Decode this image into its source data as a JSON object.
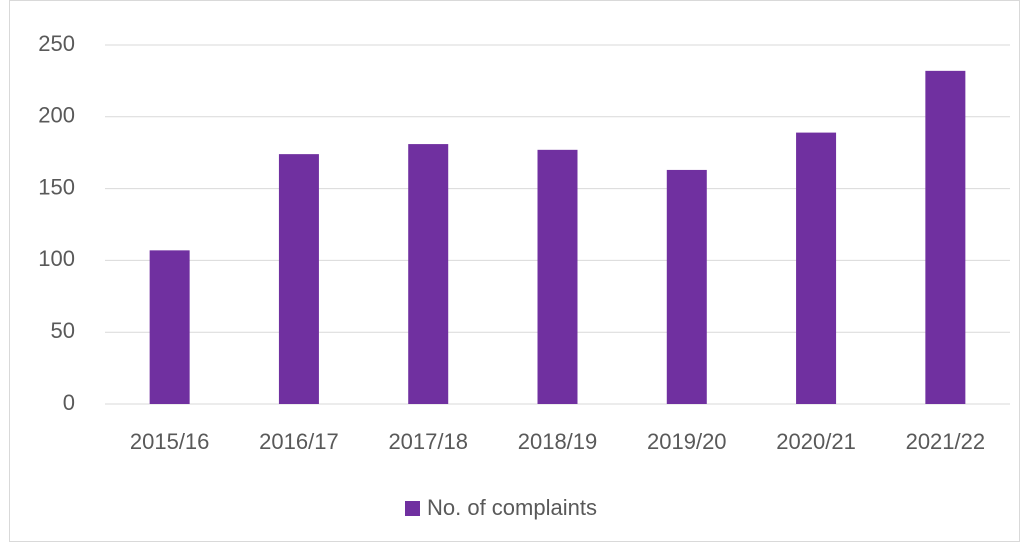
{
  "chart_data": {
    "type": "bar",
    "categories": [
      "2015/16",
      "2016/17",
      "2017/18",
      "2018/19",
      "2019/20",
      "2020/21",
      "2021/22"
    ],
    "series": [
      {
        "name": "No. of complaints",
        "color": "#7030a0",
        "values": [
          107,
          174,
          181,
          177,
          163,
          189,
          232
        ]
      }
    ],
    "ylim": [
      0,
      250
    ],
    "yticks": [
      0,
      50,
      100,
      150,
      200,
      250
    ],
    "grid": true,
    "legend": "bottom"
  }
}
